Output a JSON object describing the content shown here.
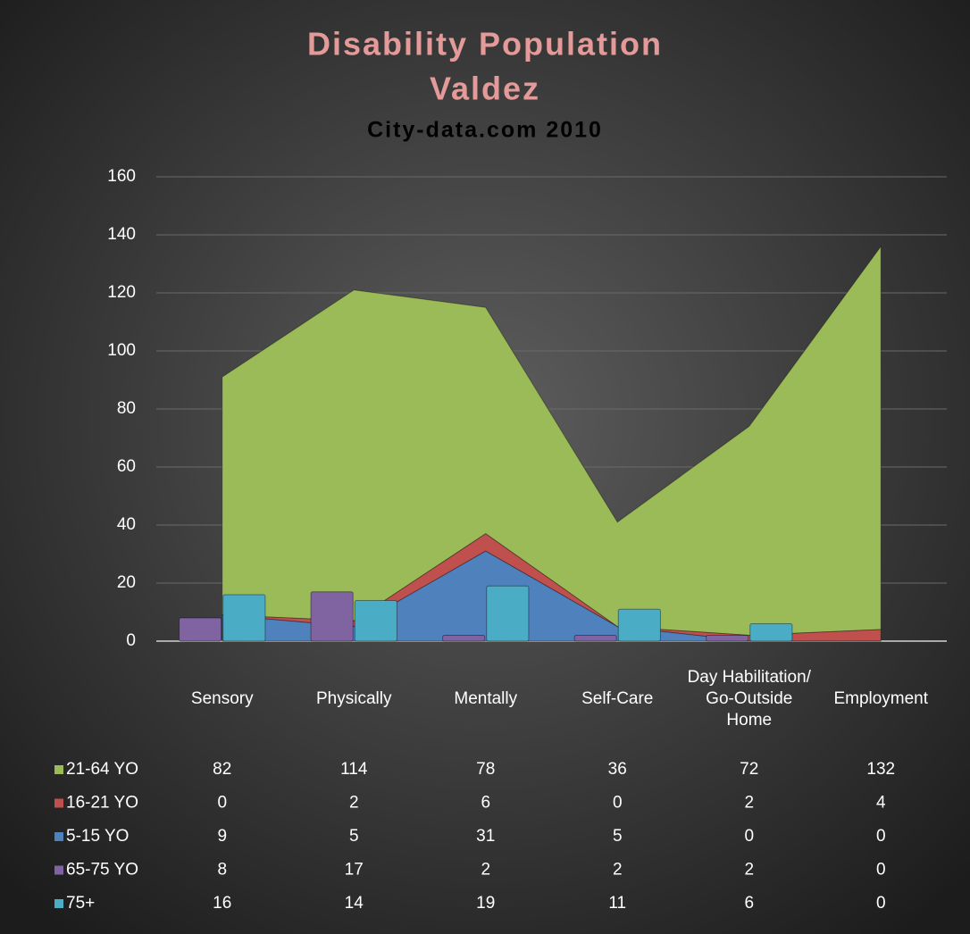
{
  "chart_data": {
    "type": "combo",
    "title": [
      "Disability Population",
      "Valdez"
    ],
    "subtitle": "City-data.com 2010",
    "categories": [
      "Sensory",
      "Physically",
      "Mentally",
      "Self-Care",
      "Day Habilitation/ Go-Outside Home",
      "Employment"
    ],
    "stacked": true,
    "series": [
      {
        "name": "21-64 YO",
        "color": "#9bbb59",
        "kind": "area",
        "values": [
          82,
          114,
          78,
          36,
          72,
          132
        ]
      },
      {
        "name": "16-21 YO",
        "color": "#c0504d",
        "kind": "area",
        "values": [
          0,
          2,
          6,
          0,
          2,
          4
        ]
      },
      {
        "name": "5-15 YO",
        "color": "#4f81bd",
        "kind": "area",
        "values": [
          9,
          5,
          31,
          5,
          0,
          0
        ]
      },
      {
        "name": "65-75 YO",
        "color": "#8064a2",
        "kind": "bar",
        "values": [
          8,
          17,
          2,
          2,
          2,
          0
        ]
      },
      {
        "name": "75+",
        "color": "#4bacc6",
        "kind": "bar",
        "values": [
          16,
          14,
          19,
          11,
          6,
          0
        ]
      }
    ],
    "ylim": [
      0,
      160
    ],
    "yticks": [
      0,
      20,
      40,
      60,
      80,
      100,
      120,
      140,
      160
    ],
    "grid": true,
    "data_table": true
  }
}
